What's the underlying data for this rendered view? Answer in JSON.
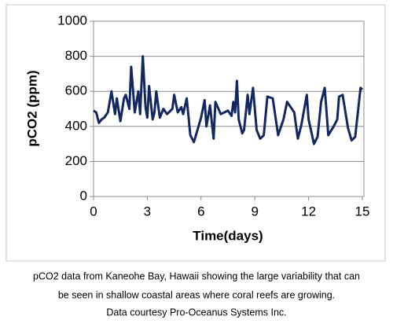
{
  "chart_data": {
    "type": "line",
    "y_label": "pCO2 (ppm)",
    "x_label": "Time(days)",
    "x": [
      0,
      0.15,
      0.3,
      0.45,
      0.6,
      0.8,
      1.0,
      1.2,
      1.3,
      1.5,
      1.7,
      1.8,
      2.0,
      2.1,
      2.3,
      2.5,
      2.6,
      2.75,
      2.9,
      3.0,
      3.1,
      3.3,
      3.4,
      3.5,
      3.7,
      3.9,
      4.1,
      4.4,
      4.5,
      4.7,
      4.9,
      5.0,
      5.2,
      5.4,
      5.6,
      5.8,
      6.0,
      6.2,
      6.3,
      6.5,
      6.7,
      6.8,
      7.1,
      7.5,
      7.7,
      7.8,
      7.9,
      8.0,
      8.1,
      8.3,
      8.4,
      8.6,
      8.7,
      8.9,
      9.1,
      9.3,
      9.5,
      9.7,
      10.0,
      10.3,
      10.6,
      10.8,
      11.2,
      11.4,
      11.6,
      11.9,
      12.0,
      12.3,
      12.5,
      12.7,
      12.9,
      13.1,
      13.4,
      13.6,
      13.7,
      13.9,
      14.2,
      14.4,
      14.6,
      14.9,
      15.0
    ],
    "values": [
      490,
      480,
      420,
      440,
      450,
      480,
      600,
      470,
      560,
      430,
      560,
      580,
      500,
      740,
      480,
      600,
      470,
      800,
      510,
      450,
      630,
      440,
      480,
      600,
      450,
      500,
      470,
      500,
      580,
      480,
      510,
      470,
      560,
      350,
      310,
      380,
      450,
      550,
      400,
      520,
      330,
      540,
      470,
      490,
      460,
      540,
      480,
      660,
      440,
      360,
      380,
      580,
      470,
      620,
      380,
      330,
      350,
      570,
      560,
      350,
      440,
      540,
      480,
      330,
      410,
      580,
      440,
      300,
      340,
      540,
      620,
      350,
      400,
      440,
      570,
      580,
      390,
      320,
      340,
      620,
      610
    ],
    "color": "#13285e",
    "xlim": [
      0,
      15
    ],
    "xticks": [
      0,
      3,
      6,
      9,
      12,
      15
    ],
    "ylim": [
      0,
      1000
    ],
    "yticks": [
      0,
      200,
      400,
      600,
      800,
      1000
    ],
    "grid": true
  },
  "caption": [
    "pCO2 data from Kaneohe Bay, Hawaii showing the large variability that can",
    "be seen in shallow coastal areas where coral reefs are growing.",
    "Data courtesy Pro-Oceanus Systems Inc."
  ]
}
